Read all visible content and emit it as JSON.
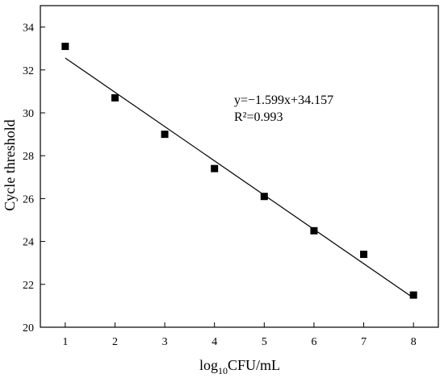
{
  "chart_data": {
    "type": "scatter",
    "xlabel_main": "log",
    "xlabel_sub": "10",
    "xlabel_rest": "CFU/mL",
    "ylabel": "Cycle threshold",
    "xlim": [
      0.5,
      8.5
    ],
    "ylim": [
      20,
      35
    ],
    "x_ticks": [
      "1",
      "2",
      "3",
      "4",
      "5",
      "6",
      "7",
      "8"
    ],
    "y_ticks": [
      "20",
      "22",
      "24",
      "26",
      "28",
      "30",
      "32",
      "34"
    ],
    "series": [
      {
        "x": [
          1,
          2,
          3,
          4,
          5,
          6,
          7,
          8
        ],
        "y": [
          33.1,
          30.7,
          29.0,
          27.4,
          26.1,
          24.5,
          23.4,
          21.5
        ]
      }
    ],
    "fit": {
      "slope": -1.599,
      "intercept": 34.157,
      "x_range": [
        1,
        8
      ]
    },
    "annotation": {
      "equation": "y=−1.599x+34.157",
      "r2": "R²=0.993"
    },
    "grid": false,
    "colors": {
      "marker": "#000000",
      "line": "#000000",
      "axis": "#000000"
    }
  }
}
